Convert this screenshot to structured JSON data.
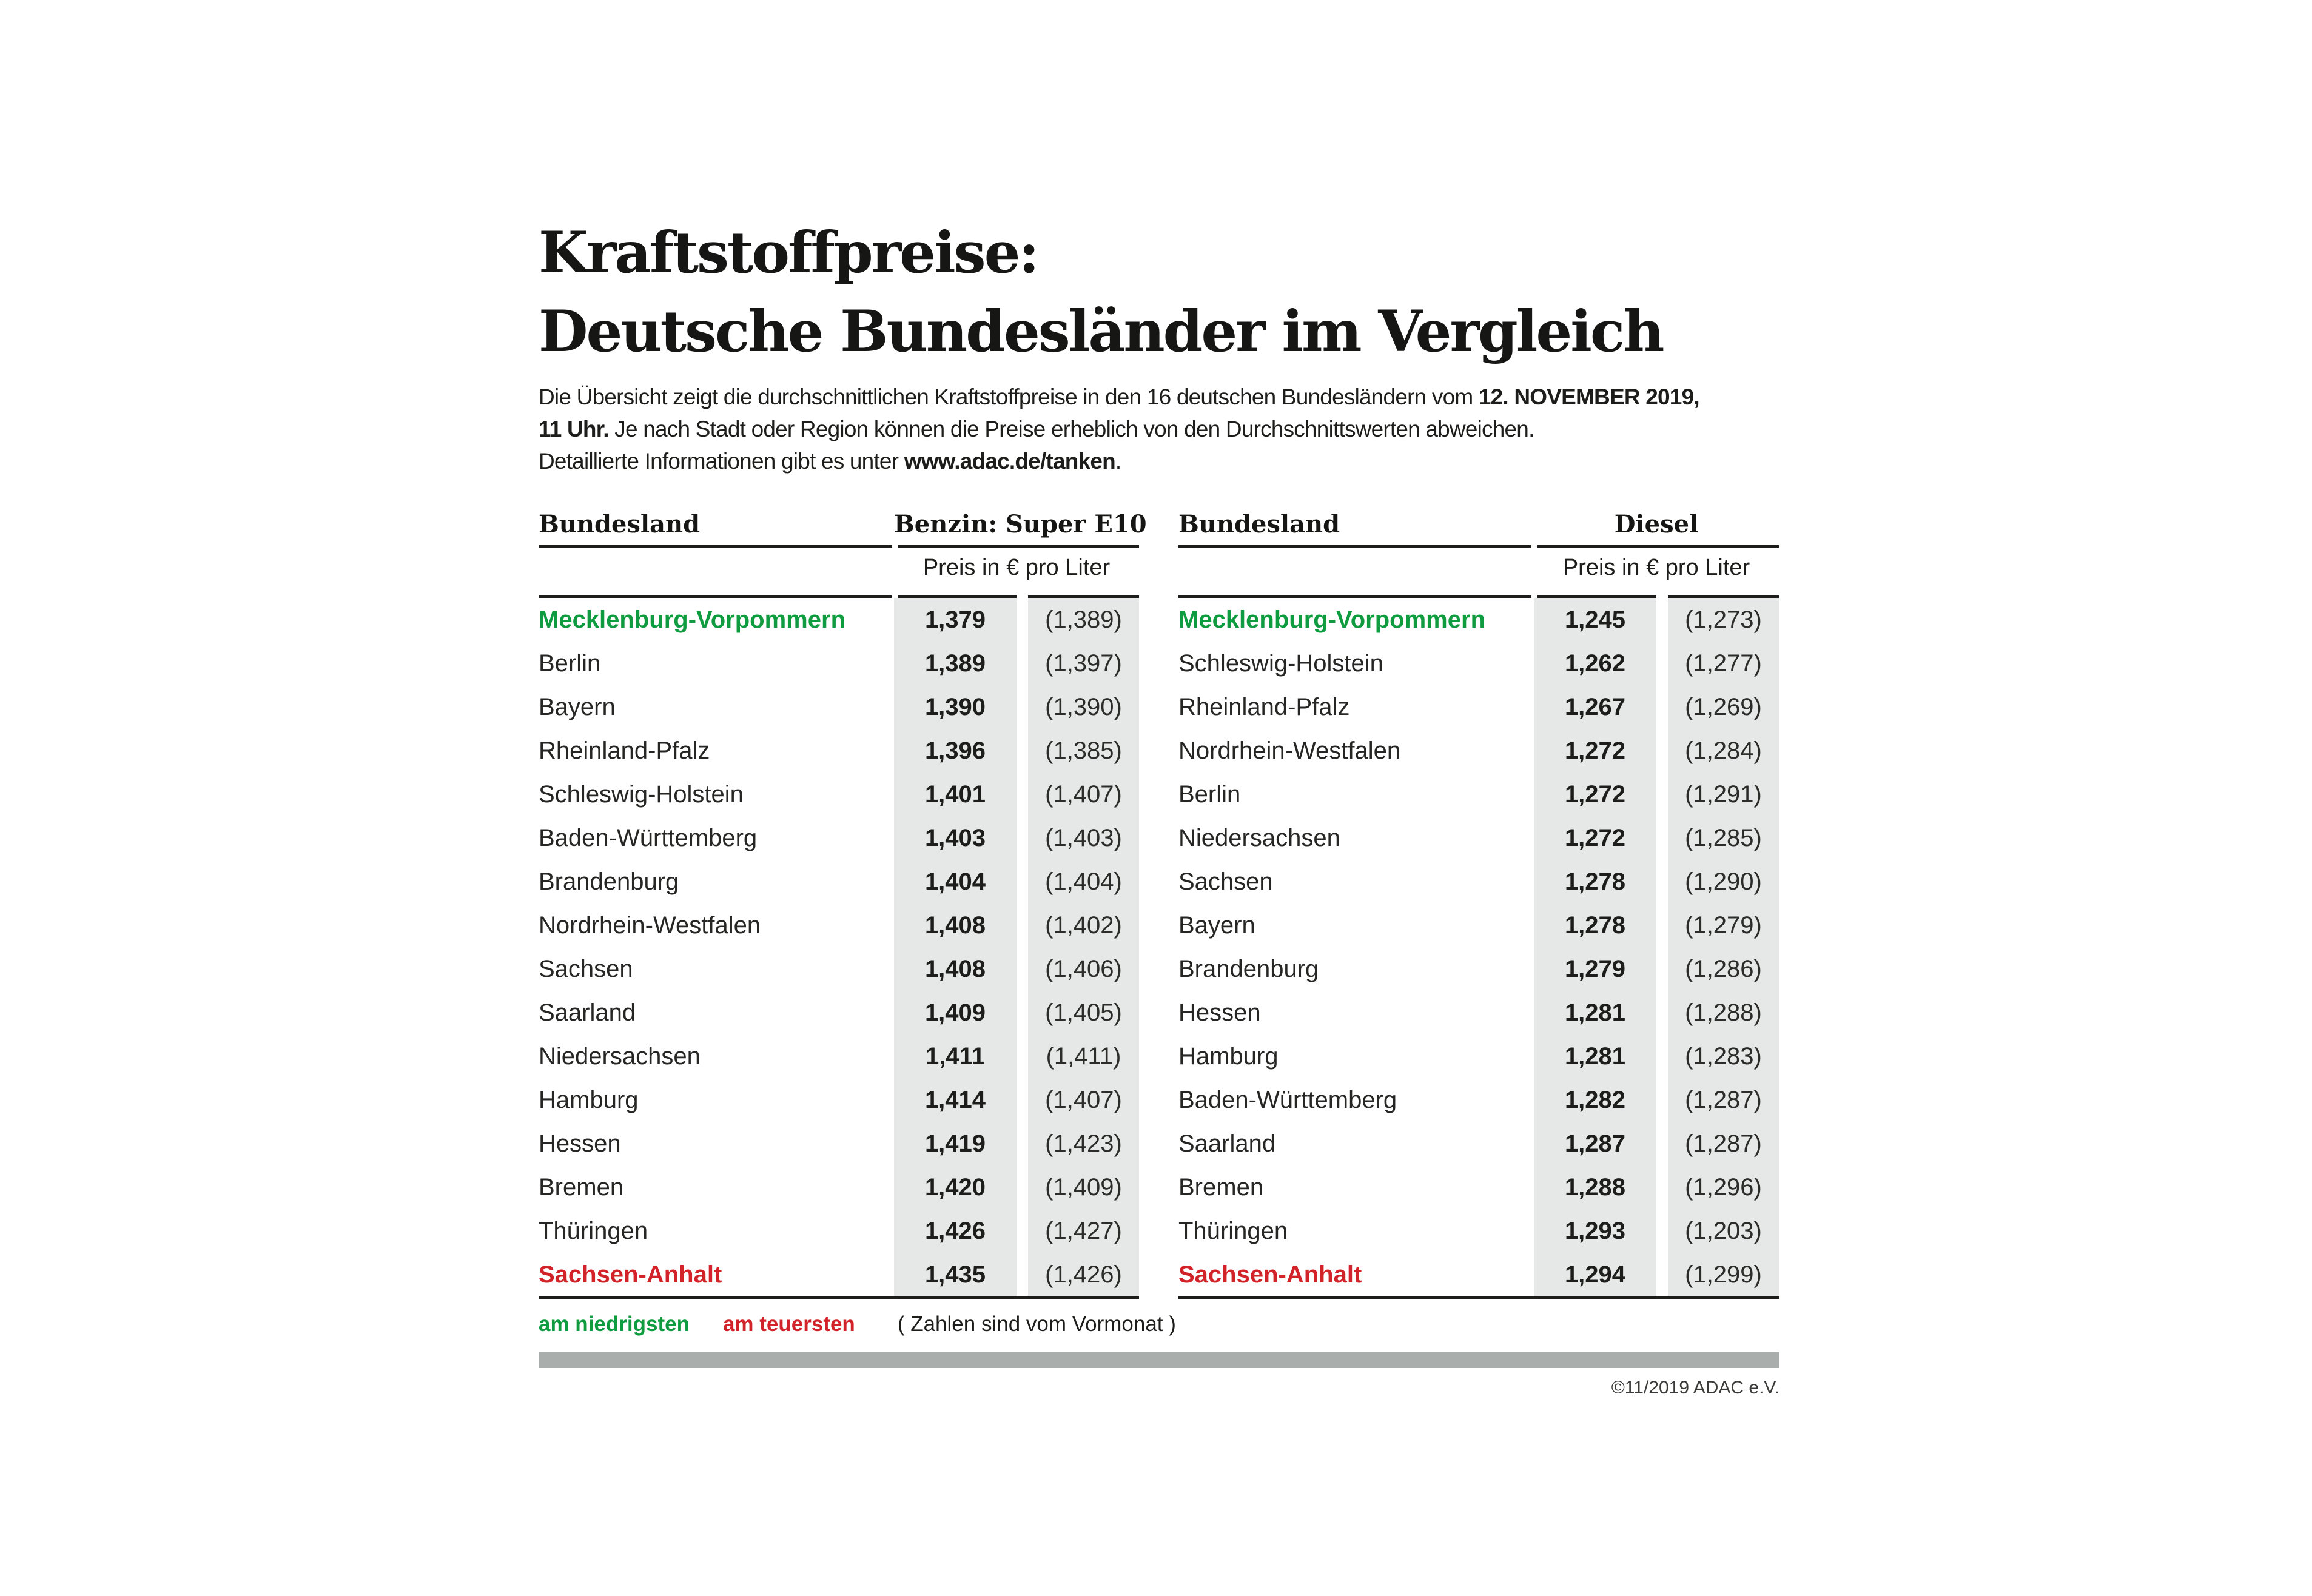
{
  "title": {
    "line1": "Kraftstoffpreise:",
    "line2": "Deutsche Bundesländer im Vergleich"
  },
  "intro": {
    "line1_regular": "Die Übersicht zeigt die durchschnittlichen Kraftstoffpreise in den 16 deutschen Bundesländern vom ",
    "line1_bold": "12. NOVEMBER 2019,",
    "line2_bold": "11 Uhr.",
    "line2_regular": " Je nach Stadt oder Region können die Preise erheblich von den Durchschnittswerten abweichen.",
    "line3_regular": "Detaillierte Informationen gibt es unter ",
    "line3_bold": "www.adac.de/tanken",
    "line3_end": "."
  },
  "tables": [
    {
      "id": "benzin",
      "bundesland_header": "Bundesland",
      "fuel_header": "Benzin: Super E10",
      "unit_header": "Preis in € pro Liter",
      "rows": [
        {
          "name": "Mecklenburg-Vorpommern",
          "value": "1,379",
          "prev": "(1,389)",
          "highlight": "lowest"
        },
        {
          "name": "Berlin",
          "value": "1,389",
          "prev": "(1,397)"
        },
        {
          "name": "Bayern",
          "value": "1,390",
          "prev": "(1,390)"
        },
        {
          "name": "Rheinland-Pfalz",
          "value": "1,396",
          "prev": "(1,385)"
        },
        {
          "name": "Schleswig-Holstein",
          "value": "1,401",
          "prev": "(1,407)"
        },
        {
          "name": "Baden-Württemberg",
          "value": "1,403",
          "prev": "(1,403)"
        },
        {
          "name": "Brandenburg",
          "value": "1,404",
          "prev": "(1,404)"
        },
        {
          "name": "Nordrhein-Westfalen",
          "value": "1,408",
          "prev": "(1,402)"
        },
        {
          "name": "Sachsen",
          "value": "1,408",
          "prev": "(1,406)"
        },
        {
          "name": "Saarland",
          "value": "1,409",
          "prev": "(1,405)"
        },
        {
          "name": "Niedersachsen",
          "value": "1,411",
          "prev": "(1,411)"
        },
        {
          "name": "Hamburg",
          "value": "1,414",
          "prev": "(1,407)"
        },
        {
          "name": "Hessen",
          "value": "1,419",
          "prev": "(1,423)"
        },
        {
          "name": "Bremen",
          "value": "1,420",
          "prev": "(1,409)"
        },
        {
          "name": "Thüringen",
          "value": "1,426",
          "prev": "(1,427)"
        },
        {
          "name": "Sachsen-Anhalt",
          "value": "1,435",
          "prev": "(1,426)",
          "highlight": "highest"
        }
      ]
    },
    {
      "id": "diesel",
      "bundesland_header": "Bundesland",
      "fuel_header": "Diesel",
      "unit_header": "Preis in € pro Liter",
      "rows": [
        {
          "name": "Mecklenburg-Vorpommern",
          "value": "1,245",
          "prev": "(1,273)",
          "highlight": "lowest"
        },
        {
          "name": "Schleswig-Holstein",
          "value": "1,262",
          "prev": "(1,277)"
        },
        {
          "name": "Rheinland-Pfalz",
          "value": "1,267",
          "prev": "(1,269)"
        },
        {
          "name": "Nordrhein-Westfalen",
          "value": "1,272",
          "prev": "(1,284)"
        },
        {
          "name": "Berlin",
          "value": "1,272",
          "prev": "(1,291)"
        },
        {
          "name": "Niedersachsen",
          "value": "1,272",
          "prev": "(1,285)"
        },
        {
          "name": "Sachsen",
          "value": "1,278",
          "prev": "(1,290)"
        },
        {
          "name": "Bayern",
          "value": "1,278",
          "prev": "(1,279)"
        },
        {
          "name": "Brandenburg",
          "value": "1,279",
          "prev": "(1,286)"
        },
        {
          "name": "Hessen",
          "value": "1,281",
          "prev": "(1,288)"
        },
        {
          "name": "Hamburg",
          "value": "1,281",
          "prev": "(1,283)"
        },
        {
          "name": "Baden-Württemberg",
          "value": "1,282",
          "prev": "(1,287)"
        },
        {
          "name": "Saarland",
          "value": "1,287",
          "prev": "(1,287)"
        },
        {
          "name": "Bremen",
          "value": "1,288",
          "prev": "(1,296)"
        },
        {
          "name": "Thüringen",
          "value": "1,293",
          "prev": "(1,203)"
        },
        {
          "name": "Sachsen-Anhalt",
          "value": "1,294",
          "prev": "(1,299)",
          "highlight": "highest"
        }
      ]
    }
  ],
  "legend": {
    "lowest_label": "am niedrigsten",
    "highest_label": "am teuersten",
    "note": "( Zahlen sind vom Vormonat )"
  },
  "footer": {
    "copyright": "©11/2019 ADAC e.V."
  },
  "colors": {
    "green": "#0f9b3f",
    "red": "#d2232a",
    "column_bg": "#e5e8e7",
    "bar_gray": "#a9adac"
  },
  "chart_data": [
    {
      "type": "table",
      "title": "Benzin: Super E10",
      "unit": "Preis in € pro Liter",
      "columns": [
        "Bundesland",
        "Preis",
        "Vormonat"
      ],
      "highlight_legend": {
        "green": "am niedrigsten",
        "red": "am teuersten"
      },
      "rows": [
        [
          "Mecklenburg-Vorpommern",
          1.379,
          1.389
        ],
        [
          "Berlin",
          1.389,
          1.397
        ],
        [
          "Bayern",
          1.39,
          1.39
        ],
        [
          "Rheinland-Pfalz",
          1.396,
          1.385
        ],
        [
          "Schleswig-Holstein",
          1.401,
          1.407
        ],
        [
          "Baden-Württemberg",
          1.403,
          1.403
        ],
        [
          "Brandenburg",
          1.404,
          1.404
        ],
        [
          "Nordrhein-Westfalen",
          1.408,
          1.402
        ],
        [
          "Sachsen",
          1.408,
          1.406
        ],
        [
          "Saarland",
          1.409,
          1.405
        ],
        [
          "Niedersachsen",
          1.411,
          1.411
        ],
        [
          "Hamburg",
          1.414,
          1.407
        ],
        [
          "Hessen",
          1.419,
          1.423
        ],
        [
          "Bremen",
          1.42,
          1.409
        ],
        [
          "Thüringen",
          1.426,
          1.427
        ],
        [
          "Sachsen-Anhalt",
          1.435,
          1.426
        ]
      ]
    },
    {
      "type": "table",
      "title": "Diesel",
      "unit": "Preis in € pro Liter",
      "columns": [
        "Bundesland",
        "Preis",
        "Vormonat"
      ],
      "highlight_legend": {
        "green": "am niedrigsten",
        "red": "am teuersten"
      },
      "rows": [
        [
          "Mecklenburg-Vorpommern",
          1.245,
          1.273
        ],
        [
          "Schleswig-Holstein",
          1.262,
          1.277
        ],
        [
          "Rheinland-Pfalz",
          1.267,
          1.269
        ],
        [
          "Nordrhein-Westfalen",
          1.272,
          1.284
        ],
        [
          "Berlin",
          1.272,
          1.291
        ],
        [
          "Niedersachsen",
          1.272,
          1.285
        ],
        [
          "Sachsen",
          1.278,
          1.29
        ],
        [
          "Bayern",
          1.278,
          1.279
        ],
        [
          "Brandenburg",
          1.279,
          1.286
        ],
        [
          "Hessen",
          1.281,
          1.288
        ],
        [
          "Hamburg",
          1.281,
          1.283
        ],
        [
          "Baden-Württemberg",
          1.282,
          1.287
        ],
        [
          "Saarland",
          1.287,
          1.287
        ],
        [
          "Bremen",
          1.288,
          1.296
        ],
        [
          "Thüringen",
          1.293,
          1.203
        ],
        [
          "Sachsen-Anhalt",
          1.294,
          1.299
        ]
      ]
    }
  ]
}
